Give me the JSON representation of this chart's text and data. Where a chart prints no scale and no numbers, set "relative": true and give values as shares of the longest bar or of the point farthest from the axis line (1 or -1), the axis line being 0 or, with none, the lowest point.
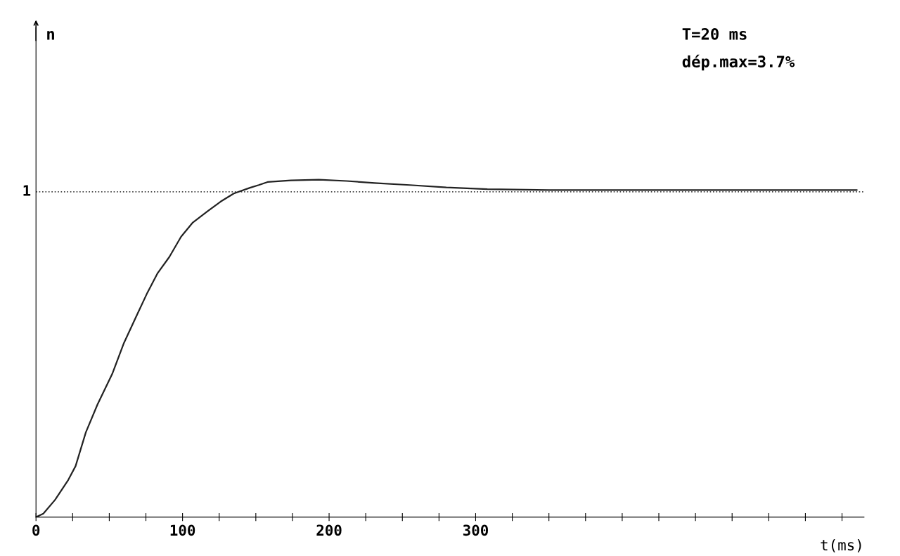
{
  "chart_data": {
    "type": "line",
    "xlabel": "t(ms)",
    "relative": true,
    "annotations": [
      "n",
      "T=20 ms",
      "dép.max=3.7%"
    ],
    "series": [
      {
        "color": "#222222",
        "x": [
          0,
          5,
          13,
          22,
          27,
          34,
          42,
          52,
          60,
          68,
          76,
          83,
          91,
          99,
          107,
          117,
          126,
          135,
          146,
          152,
          158,
          174,
          193,
          212,
          231,
          255,
          280,
          308,
          350,
          450,
          560
        ],
        "values": [
          0,
          0.01,
          0.051,
          0.11,
          0.151,
          0.251,
          0.334,
          0.424,
          0.516,
          0.591,
          0.665,
          0.723,
          0.771,
          0.831,
          0.873,
          0.906,
          0.935,
          0.959,
          0.976,
          0.984,
          0.993,
          0.998,
          1,
          0.996,
          0.99,
          0.984,
          0.977,
          0.972,
          0.969,
          0.969,
          0.969
        ]
      }
    ],
    "xlim": [
      0,
      565
    ],
    "xticks": [
      0,
      {
        "value": 25,
        "label": null
      },
      {
        "value": 50,
        "label": null
      },
      {
        "value": 75,
        "label": null
      },
      100,
      {
        "value": 125,
        "label": null
      },
      {
        "value": 150,
        "label": null
      },
      {
        "value": 175,
        "label": null
      },
      200,
      {
        "value": 225,
        "label": null
      },
      {
        "value": 250,
        "label": null
      },
      {
        "value": 275,
        "label": null
      },
      300,
      {
        "value": 325,
        "label": null
      },
      {
        "value": 350,
        "label": null
      },
      {
        "value": 375,
        "label": null
      },
      {
        "value": 400,
        "label": null
      },
      {
        "value": 425,
        "label": null
      },
      {
        "value": 450,
        "label": null
      },
      {
        "value": 475,
        "label": null
      },
      {
        "value": 500,
        "label": null
      },
      {
        "value": 525,
        "label": null
      },
      {
        "value": 550,
        "label": null
      }
    ],
    "ref_lines": [
      {
        "axis": "y",
        "value": 0.964,
        "label": "1",
        "line_style": "dotted",
        "color": "#444444"
      }
    ],
    "grid": false,
    "marker": "none",
    "line_style": "solid"
  }
}
